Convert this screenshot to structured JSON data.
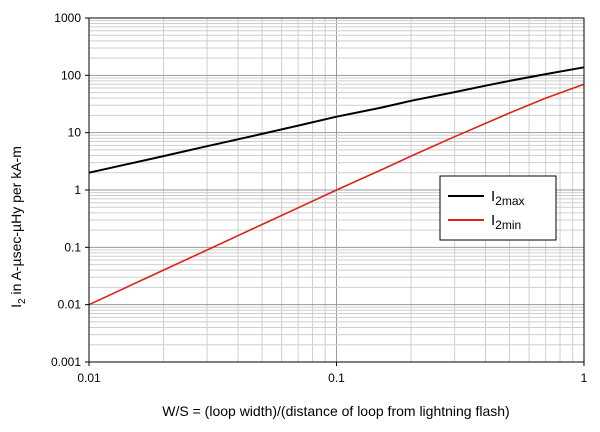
{
  "chart_data": {
    "type": "line",
    "title": "",
    "xlabel": "W/S = (loop width)/(distance of loop from lightning flash)",
    "ylabel": {
      "prefix": "I",
      "sub": "2",
      "suffix": " in A-µsec-µHy per kA-m"
    },
    "x_scale": "log",
    "y_scale": "log",
    "xlim": [
      0.01,
      1
    ],
    "ylim": [
      0.001,
      1000
    ],
    "x_ticks": [
      {
        "value": 0.01,
        "label": "0.01"
      },
      {
        "value": 0.1,
        "label": "0.1"
      },
      {
        "value": 1,
        "label": "1"
      }
    ],
    "y_ticks": [
      {
        "value": 0.001,
        "label": "0.001"
      },
      {
        "value": 0.01,
        "label": "0.01"
      },
      {
        "value": 0.1,
        "label": "0.1"
      },
      {
        "value": 1,
        "label": "1"
      },
      {
        "value": 10,
        "label": "10"
      },
      {
        "value": 100,
        "label": "100"
      },
      {
        "value": 1000,
        "label": "1000"
      }
    ],
    "grid": true,
    "legend_position": "right-middle",
    "series": [
      {
        "name": {
          "base": "I",
          "sub": "2max"
        },
        "color": "#000000",
        "points": [
          {
            "x": 0.01,
            "y": 2.0
          },
          {
            "x": 0.02,
            "y": 3.9
          },
          {
            "x": 0.03,
            "y": 5.8
          },
          {
            "x": 0.05,
            "y": 9.5
          },
          {
            "x": 0.07,
            "y": 13.3
          },
          {
            "x": 0.1,
            "y": 19
          },
          {
            "x": 0.15,
            "y": 27
          },
          {
            "x": 0.2,
            "y": 36
          },
          {
            "x": 0.3,
            "y": 51
          },
          {
            "x": 0.4,
            "y": 66
          },
          {
            "x": 0.5,
            "y": 80
          },
          {
            "x": 0.7,
            "y": 105
          },
          {
            "x": 1.0,
            "y": 138
          }
        ]
      },
      {
        "name": {
          "base": "I",
          "sub": "2min"
        },
        "color": "#d9241c",
        "points": [
          {
            "x": 0.01,
            "y": 0.01
          },
          {
            "x": 0.02,
            "y": 0.04
          },
          {
            "x": 0.03,
            "y": 0.09
          },
          {
            "x": 0.05,
            "y": 0.25
          },
          {
            "x": 0.07,
            "y": 0.49
          },
          {
            "x": 0.1,
            "y": 1.0
          },
          {
            "x": 0.15,
            "y": 2.2
          },
          {
            "x": 0.2,
            "y": 3.9
          },
          {
            "x": 0.3,
            "y": 8.5
          },
          {
            "x": 0.4,
            "y": 14.5
          },
          {
            "x": 0.5,
            "y": 22
          },
          {
            "x": 0.7,
            "y": 40
          },
          {
            "x": 1.0,
            "y": 70
          }
        ]
      }
    ]
  }
}
